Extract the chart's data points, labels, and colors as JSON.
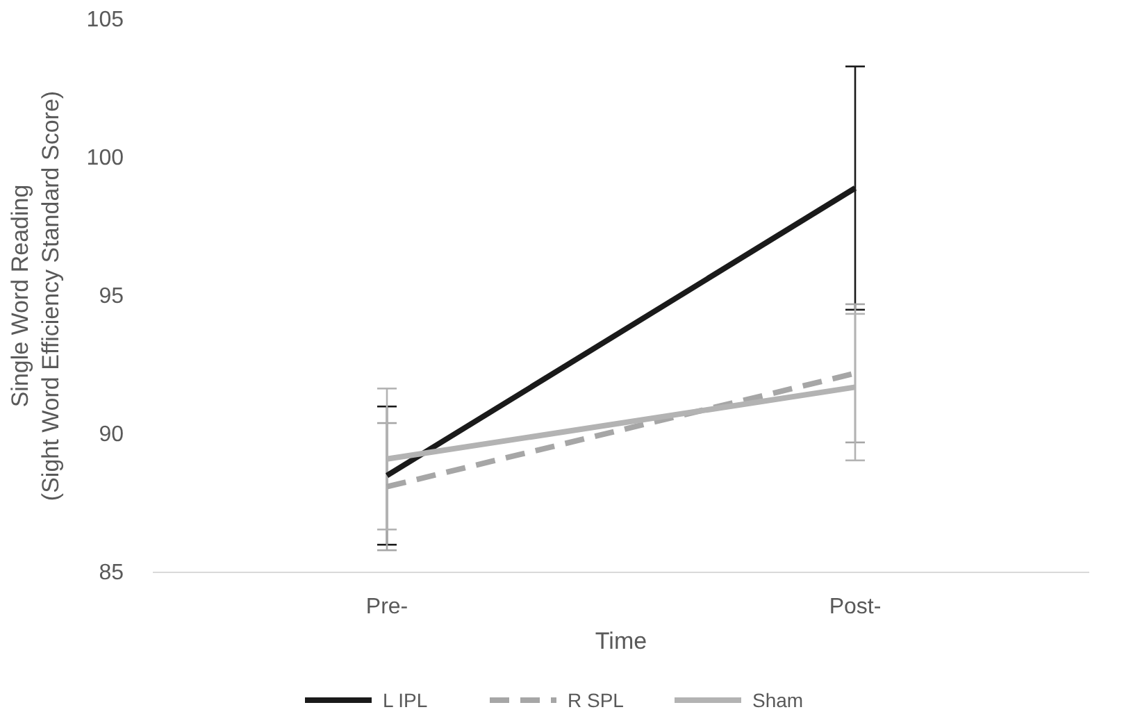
{
  "chart_data": {
    "type": "line",
    "ylabel": "Single Word Reading\n(Sight Word Efficiency Standard Score)",
    "xlabel": "Time",
    "categories": [
      "Pre-",
      "Post-"
    ],
    "series": [
      {
        "name": "L IPL",
        "color": "#1a1a1a",
        "line_style": "solid",
        "values": [
          88.5,
          98.9
        ],
        "errors": [
          2.5,
          4.4
        ]
      },
      {
        "name": "R SPL",
        "color": "#a6a6a6",
        "line_style": "dashed",
        "values": [
          88.1,
          92.2
        ],
        "errors": [
          2.3,
          2.5
        ]
      },
      {
        "name": "Sham",
        "color": "#b3b3b3",
        "line_style": "solid",
        "values": [
          89.1,
          91.7
        ],
        "errors": [
          2.55,
          2.65
        ]
      }
    ],
    "ylim": [
      85,
      105
    ],
    "yticks": [
      85,
      90,
      95,
      100,
      105
    ],
    "grid": false,
    "legend": "bottom",
    "marker": "none"
  }
}
